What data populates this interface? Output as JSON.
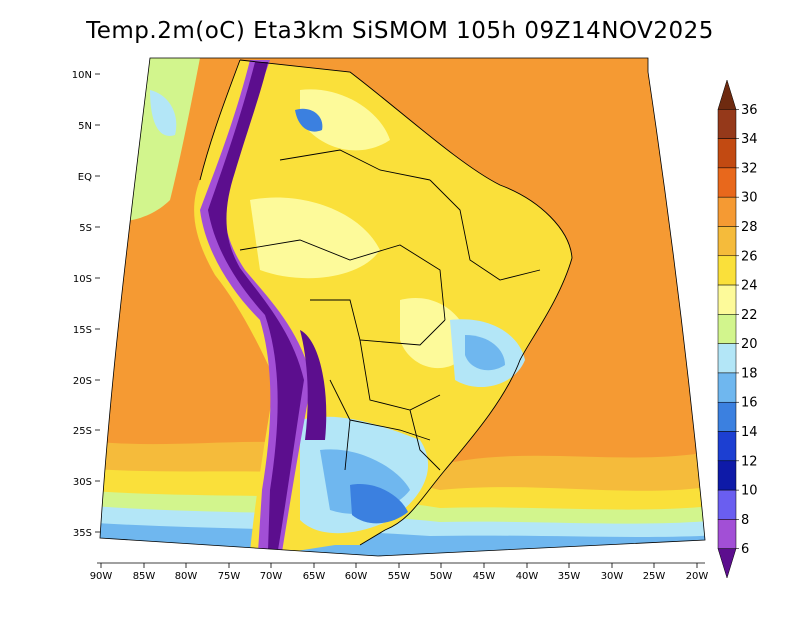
{
  "title": "Temp.2m(oC) Eta3km SiSMOM 105h 09Z14NOV2025",
  "lat_labels": [
    "10N",
    "5N",
    "EQ",
    "5S",
    "10S",
    "15S",
    "20S",
    "25S",
    "30S",
    "35S"
  ],
  "lon_labels": [
    "90W",
    "85W",
    "80W",
    "75W",
    "70W",
    "65W",
    "60W",
    "55W",
    "50W",
    "45W",
    "40W",
    "35W",
    "30W",
    "25W",
    "20W"
  ],
  "colorbar": {
    "labels": [
      "36",
      "34",
      "32",
      "30",
      "28",
      "26",
      "24",
      "22",
      "20",
      "18",
      "16",
      "14",
      "12",
      "10",
      "8",
      "6"
    ],
    "colors": [
      "#6e2a10",
      "#95391a",
      "#c24a12",
      "#e8681c",
      "#f59a33",
      "#f5bb3b",
      "#fae03a",
      "#fdfa9a",
      "#d2f58d",
      "#b3e6f7",
      "#6fb7ef",
      "#3b80e0",
      "#1c3fd2",
      "#0e1aa8",
      "#6a5ef0",
      "#a24fd6",
      "#5c0e8e"
    ]
  }
}
